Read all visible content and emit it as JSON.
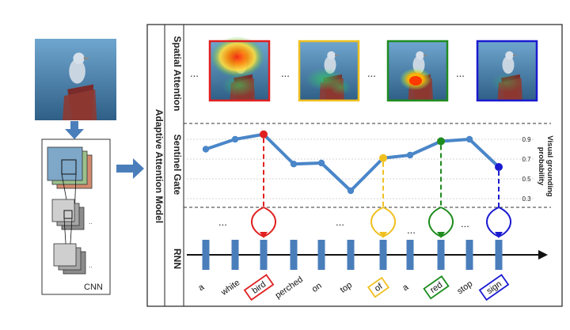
{
  "left": {
    "cnn_label": "CNN"
  },
  "main": {
    "model_label": "Adaptive Attention Model",
    "rows": {
      "spatial": "Spatial Attention",
      "sentinel": "Sentinel Gate",
      "rnn": "RNN"
    },
    "ellipsis": "...",
    "y_axis_title_line1": "Visual grounding",
    "y_axis_title_line2": "probability",
    "y_ticks": [
      "0.9",
      "0.7",
      "0.5",
      "0.3"
    ]
  },
  "attention_frames": [
    {
      "word": "bird",
      "color": "#e02020"
    },
    {
      "word": "of",
      "color": "#f0c020"
    },
    {
      "word": "red",
      "color": "#1e8c1e"
    },
    {
      "word": "sign",
      "color": "#1a1ad0"
    }
  ],
  "chart_data": {
    "type": "line",
    "x": [
      "a",
      "white",
      "bird",
      "perched",
      "on",
      "top",
      "of",
      "a",
      "red",
      "stop",
      "sign"
    ],
    "values": [
      0.8,
      0.9,
      0.95,
      0.65,
      0.66,
      0.38,
      0.71,
      0.74,
      0.88,
      0.9,
      0.62
    ],
    "highlighted_words": [
      "bird",
      "of",
      "red",
      "sign"
    ],
    "highlight_colors": [
      "#e02020",
      "#f0c020",
      "#1e8c1e",
      "#1a1ad0"
    ],
    "y_ticks": [
      0.9,
      0.7,
      0.5,
      0.3
    ],
    "line_color": "#4a86c8"
  }
}
